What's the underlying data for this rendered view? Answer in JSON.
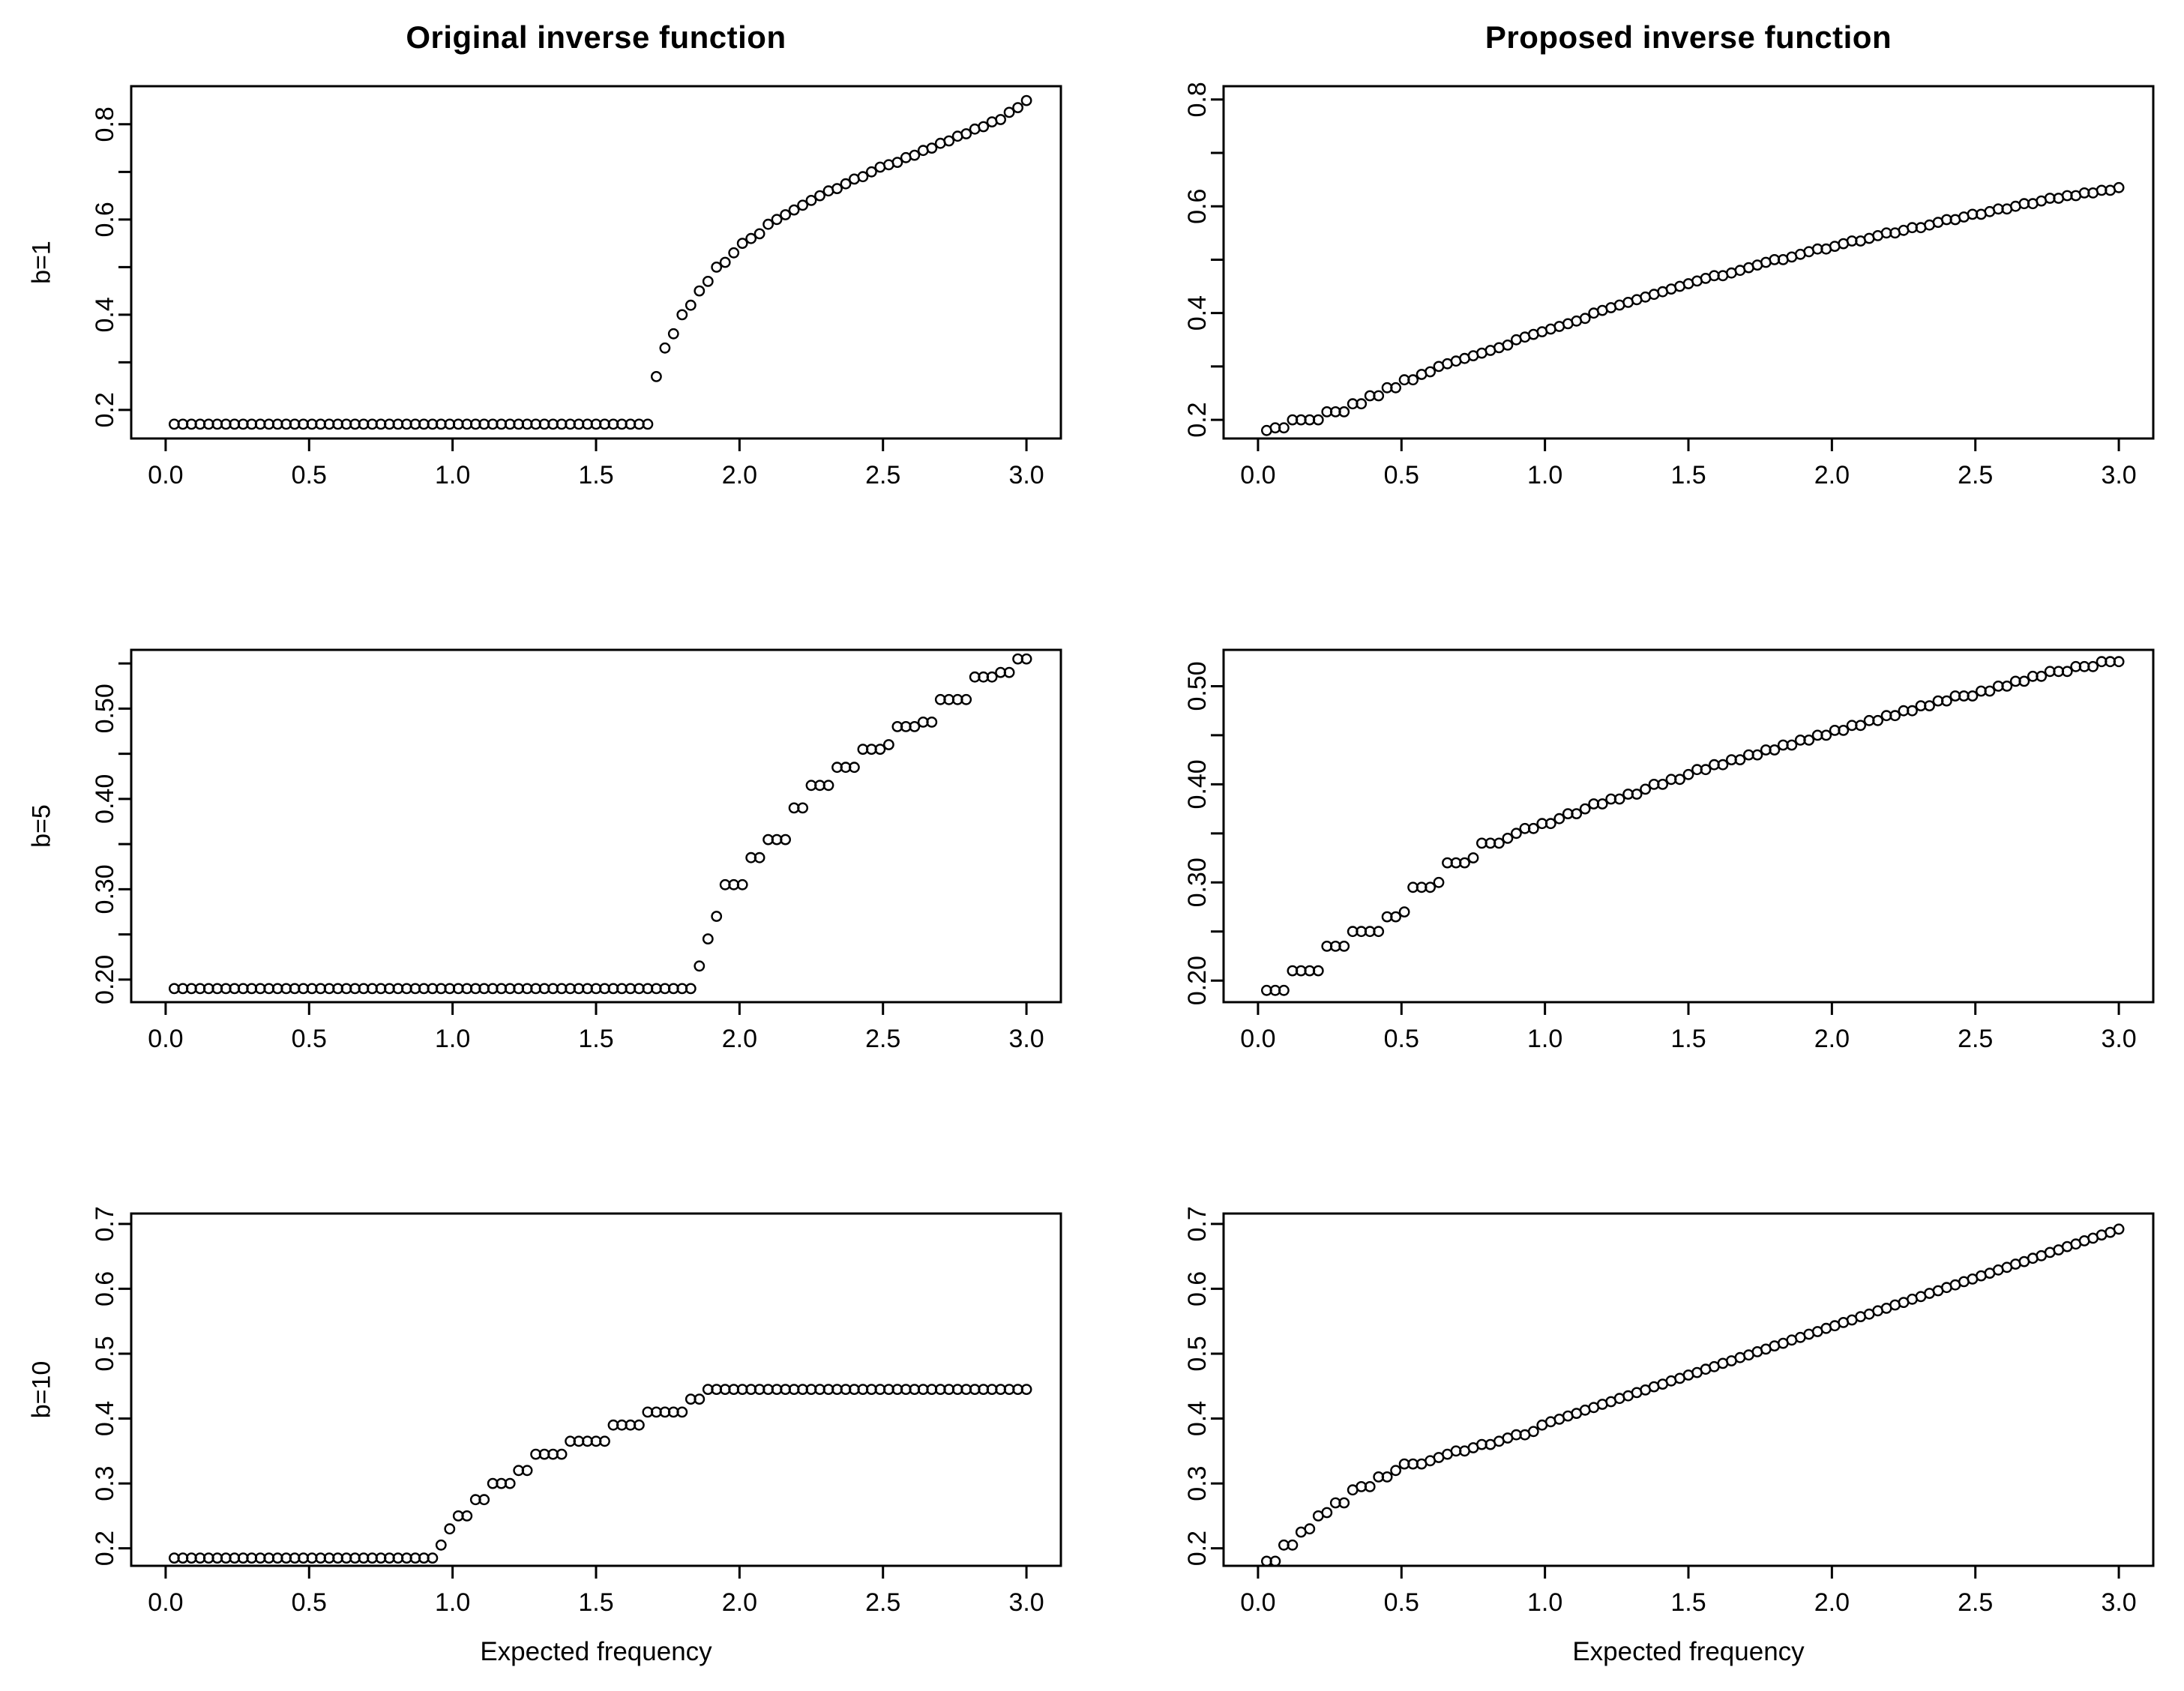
{
  "page": {
    "background": "#ffffff",
    "ink": "#000000",
    "columns": [
      "Original inverse function",
      "Proposed inverse function"
    ],
    "rows": [
      "b=1",
      "b=5",
      "b=10"
    ],
    "x_axis_label": "Expected frequency"
  },
  "chart_data": [
    {
      "name": "original-b1",
      "type": "scatter",
      "marker": "open-circle",
      "title": "Original inverse function",
      "row_label": "b=1",
      "xlim": [
        -0.12,
        3.12
      ],
      "ylim": [
        0.14,
        0.88
      ],
      "xticks": {
        "values": [
          0,
          0.5,
          1,
          1.5,
          2,
          2.5,
          3
        ],
        "labels": [
          "0.0",
          "0.5",
          "1.0",
          "1.5",
          "2.0",
          "2.5",
          "3.0"
        ]
      },
      "yticks": {
        "values": [
          0.2,
          0.3,
          0.4,
          0.5,
          0.6,
          0.7,
          0.8
        ],
        "labels": [
          "0.2",
          "",
          "0.4",
          "",
          "0.6",
          "",
          "0.8"
        ]
      },
      "x0": 0.03,
      "dx": 0.03,
      "y": [
        0.17,
        0.17,
        0.17,
        0.17,
        0.17,
        0.17,
        0.17,
        0.17,
        0.17,
        0.17,
        0.17,
        0.17,
        0.17,
        0.17,
        0.17,
        0.17,
        0.17,
        0.17,
        0.17,
        0.17,
        0.17,
        0.17,
        0.17,
        0.17,
        0.17,
        0.17,
        0.17,
        0.17,
        0.17,
        0.17,
        0.17,
        0.17,
        0.17,
        0.17,
        0.17,
        0.17,
        0.17,
        0.17,
        0.17,
        0.17,
        0.17,
        0.17,
        0.17,
        0.17,
        0.17,
        0.17,
        0.17,
        0.17,
        0.17,
        0.17,
        0.17,
        0.17,
        0.17,
        0.17,
        0.17,
        0.17,
        0.27,
        0.33,
        0.36,
        0.4,
        0.42,
        0.45,
        0.47,
        0.5,
        0.51,
        0.53,
        0.55,
        0.56,
        0.57,
        0.59,
        0.6,
        0.61,
        0.62,
        0.63,
        0.64,
        0.65,
        0.66,
        0.665,
        0.675,
        0.685,
        0.69,
        0.7,
        0.71,
        0.715,
        0.72,
        0.73,
        0.735,
        0.745,
        0.75,
        0.76,
        0.765,
        0.775,
        0.78,
        0.79,
        0.795,
        0.805,
        0.81,
        0.825,
        0.835,
        0.85
      ]
    },
    {
      "name": "proposed-b1",
      "type": "scatter",
      "marker": "open-circle",
      "title": "Proposed inverse function",
      "xlim": [
        -0.12,
        3.12
      ],
      "ylim": [
        0.165,
        0.825
      ],
      "xticks": {
        "values": [
          0,
          0.5,
          1,
          1.5,
          2,
          2.5,
          3
        ],
        "labels": [
          "0.0",
          "0.5",
          "1.0",
          "1.5",
          "2.0",
          "2.5",
          "3.0"
        ]
      },
      "yticks": {
        "values": [
          0.2,
          0.3,
          0.4,
          0.5,
          0.6,
          0.7,
          0.8
        ],
        "labels": [
          "0.2",
          "",
          "0.4",
          "",
          "0.6",
          "",
          "0.8"
        ]
      },
      "x0": 0.03,
      "dx": 0.03,
      "y": [
        0.18,
        0.185,
        0.185,
        0.2,
        0.2,
        0.2,
        0.2,
        0.215,
        0.215,
        0.215,
        0.23,
        0.23,
        0.245,
        0.245,
        0.26,
        0.26,
        0.275,
        0.275,
        0.285,
        0.29,
        0.3,
        0.305,
        0.31,
        0.315,
        0.32,
        0.325,
        0.33,
        0.335,
        0.34,
        0.35,
        0.355,
        0.36,
        0.365,
        0.37,
        0.375,
        0.38,
        0.385,
        0.39,
        0.4,
        0.405,
        0.41,
        0.415,
        0.42,
        0.425,
        0.43,
        0.435,
        0.44,
        0.445,
        0.45,
        0.455,
        0.46,
        0.465,
        0.47,
        0.47,
        0.475,
        0.48,
        0.485,
        0.49,
        0.495,
        0.5,
        0.5,
        0.505,
        0.51,
        0.515,
        0.52,
        0.52,
        0.525,
        0.53,
        0.535,
        0.535,
        0.54,
        0.545,
        0.55,
        0.55,
        0.555,
        0.56,
        0.56,
        0.565,
        0.57,
        0.575,
        0.575,
        0.58,
        0.585,
        0.585,
        0.59,
        0.595,
        0.595,
        0.6,
        0.605,
        0.605,
        0.61,
        0.615,
        0.615,
        0.62,
        0.62,
        0.625,
        0.625,
        0.63,
        0.63,
        0.635
      ]
    },
    {
      "name": "original-b5",
      "type": "scatter",
      "marker": "open-circle",
      "row_label": "b=5",
      "xlim": [
        -0.12,
        3.12
      ],
      "ylim": [
        0.175,
        0.565
      ],
      "xticks": {
        "values": [
          0,
          0.5,
          1,
          1.5,
          2,
          2.5,
          3
        ],
        "labels": [
          "0.0",
          "0.5",
          "1.0",
          "1.5",
          "2.0",
          "2.5",
          "3.0"
        ]
      },
      "yticks": {
        "values": [
          0.2,
          0.25,
          0.3,
          0.35,
          0.4,
          0.45,
          0.5,
          0.55
        ],
        "labels": [
          "0.20",
          "",
          "0.30",
          "",
          "0.40",
          "",
          "0.50",
          ""
        ]
      },
      "x0": 0.03,
      "dx": 0.03,
      "y": [
        0.19,
        0.19,
        0.19,
        0.19,
        0.19,
        0.19,
        0.19,
        0.19,
        0.19,
        0.19,
        0.19,
        0.19,
        0.19,
        0.19,
        0.19,
        0.19,
        0.19,
        0.19,
        0.19,
        0.19,
        0.19,
        0.19,
        0.19,
        0.19,
        0.19,
        0.19,
        0.19,
        0.19,
        0.19,
        0.19,
        0.19,
        0.19,
        0.19,
        0.19,
        0.19,
        0.19,
        0.19,
        0.19,
        0.19,
        0.19,
        0.19,
        0.19,
        0.19,
        0.19,
        0.19,
        0.19,
        0.19,
        0.19,
        0.19,
        0.19,
        0.19,
        0.19,
        0.19,
        0.19,
        0.19,
        0.19,
        0.19,
        0.19,
        0.19,
        0.19,
        0.19,
        0.215,
        0.245,
        0.27,
        0.305,
        0.305,
        0.305,
        0.335,
        0.335,
        0.355,
        0.355,
        0.355,
        0.39,
        0.39,
        0.415,
        0.415,
        0.415,
        0.435,
        0.435,
        0.435,
        0.455,
        0.455,
        0.455,
        0.46,
        0.48,
        0.48,
        0.48,
        0.485,
        0.485,
        0.51,
        0.51,
        0.51,
        0.51,
        0.535,
        0.535,
        0.535,
        0.54,
        0.54,
        0.555,
        0.555
      ]
    },
    {
      "name": "proposed-b5",
      "type": "scatter",
      "marker": "open-circle",
      "xlim": [
        -0.12,
        3.12
      ],
      "ylim": [
        0.178,
        0.537
      ],
      "xticks": {
        "values": [
          0,
          0.5,
          1,
          1.5,
          2,
          2.5,
          3
        ],
        "labels": [
          "0.0",
          "0.5",
          "1.0",
          "1.5",
          "2.0",
          "2.5",
          "3.0"
        ]
      },
      "yticks": {
        "values": [
          0.2,
          0.25,
          0.3,
          0.35,
          0.4,
          0.45,
          0.5
        ],
        "labels": [
          "0.20",
          "",
          "0.30",
          "",
          "0.40",
          "",
          "0.50"
        ]
      },
      "x0": 0.03,
      "dx": 0.03,
      "y": [
        0.19,
        0.19,
        0.19,
        0.21,
        0.21,
        0.21,
        0.21,
        0.235,
        0.235,
        0.235,
        0.25,
        0.25,
        0.25,
        0.25,
        0.265,
        0.265,
        0.27,
        0.295,
        0.295,
        0.295,
        0.3,
        0.32,
        0.32,
        0.32,
        0.325,
        0.34,
        0.34,
        0.34,
        0.345,
        0.35,
        0.355,
        0.355,
        0.36,
        0.36,
        0.365,
        0.37,
        0.37,
        0.375,
        0.38,
        0.38,
        0.385,
        0.385,
        0.39,
        0.39,
        0.395,
        0.4,
        0.4,
        0.405,
        0.405,
        0.41,
        0.415,
        0.415,
        0.42,
        0.42,
        0.425,
        0.425,
        0.43,
        0.43,
        0.435,
        0.435,
        0.44,
        0.44,
        0.445,
        0.445,
        0.45,
        0.45,
        0.455,
        0.455,
        0.46,
        0.46,
        0.465,
        0.465,
        0.47,
        0.47,
        0.475,
        0.475,
        0.48,
        0.48,
        0.485,
        0.485,
        0.49,
        0.49,
        0.49,
        0.495,
        0.495,
        0.5,
        0.5,
        0.505,
        0.505,
        0.51,
        0.51,
        0.515,
        0.515,
        0.515,
        0.52,
        0.52,
        0.52,
        0.525,
        0.525,
        0.525
      ]
    },
    {
      "name": "original-b10",
      "type": "scatter",
      "marker": "open-circle",
      "row_label": "b=10",
      "xlabel": "Expected frequency",
      "xlim": [
        -0.12,
        3.12
      ],
      "ylim": [
        0.173,
        0.716
      ],
      "xticks": {
        "values": [
          0,
          0.5,
          1,
          1.5,
          2,
          2.5,
          3
        ],
        "labels": [
          "0.0",
          "0.5",
          "1.0",
          "1.5",
          "2.0",
          "2.5",
          "3.0"
        ]
      },
      "yticks": {
        "values": [
          0.2,
          0.3,
          0.4,
          0.5,
          0.6,
          0.7
        ],
        "labels": [
          "0.2",
          "0.3",
          "0.4",
          "0.5",
          "0.6",
          "0.7"
        ]
      },
      "x0": 0.03,
      "dx": 0.03,
      "y": [
        0.185,
        0.185,
        0.185,
        0.185,
        0.185,
        0.185,
        0.185,
        0.185,
        0.185,
        0.185,
        0.185,
        0.185,
        0.185,
        0.185,
        0.185,
        0.185,
        0.185,
        0.185,
        0.185,
        0.185,
        0.185,
        0.185,
        0.185,
        0.185,
        0.185,
        0.185,
        0.185,
        0.185,
        0.185,
        0.185,
        0.185,
        0.205,
        0.23,
        0.25,
        0.25,
        0.275,
        0.275,
        0.3,
        0.3,
        0.3,
        0.32,
        0.32,
        0.345,
        0.345,
        0.345,
        0.345,
        0.365,
        0.365,
        0.365,
        0.365,
        0.365,
        0.39,
        0.39,
        0.39,
        0.39,
        0.41,
        0.41,
        0.41,
        0.41,
        0.41,
        0.43,
        0.43,
        0.445,
        0.445,
        0.445,
        0.445,
        0.445,
        0.445,
        0.445,
        0.445,
        0.445,
        0.445,
        0.445,
        0.445,
        0.445,
        0.445,
        0.445,
        0.445,
        0.445,
        0.445,
        0.445,
        0.445,
        0.445,
        0.445,
        0.445,
        0.445,
        0.445,
        0.445,
        0.445,
        0.445,
        0.445,
        0.445,
        0.445,
        0.445,
        0.445,
        0.445,
        0.445,
        0.445,
        0.445,
        0.445
      ]
    },
    {
      "name": "proposed-b10",
      "type": "scatter",
      "marker": "open-circle",
      "xlabel": "Expected frequency",
      "xlim": [
        -0.12,
        3.12
      ],
      "ylim": [
        0.173,
        0.716
      ],
      "xticks": {
        "values": [
          0,
          0.5,
          1,
          1.5,
          2,
          2.5,
          3
        ],
        "labels": [
          "0.0",
          "0.5",
          "1.0",
          "1.5",
          "2.0",
          "2.5",
          "3.0"
        ]
      },
      "yticks": {
        "values": [
          0.2,
          0.3,
          0.4,
          0.5,
          0.6,
          0.7
        ],
        "labels": [
          "0.2",
          "0.3",
          "0.4",
          "0.5",
          "0.6",
          "0.7"
        ]
      },
      "x0": 0.03,
      "dx": 0.03,
      "y": [
        0.18,
        0.18,
        0.205,
        0.205,
        0.225,
        0.23,
        0.25,
        0.255,
        0.27,
        0.27,
        0.29,
        0.295,
        0.295,
        0.31,
        0.31,
        0.32,
        0.33,
        0.33,
        0.33,
        0.335,
        0.34,
        0.345,
        0.35,
        0.35,
        0.355,
        0.36,
        0.36,
        0.365,
        0.37,
        0.375,
        0.375,
        0.38,
        0.39,
        0.395,
        0.399,
        0.404,
        0.408,
        0.413,
        0.417,
        0.422,
        0.426,
        0.431,
        0.435,
        0.44,
        0.444,
        0.449,
        0.453,
        0.458,
        0.462,
        0.467,
        0.471,
        0.476,
        0.48,
        0.485,
        0.489,
        0.494,
        0.498,
        0.503,
        0.507,
        0.512,
        0.516,
        0.521,
        0.525,
        0.53,
        0.534,
        0.539,
        0.543,
        0.548,
        0.552,
        0.557,
        0.561,
        0.566,
        0.57,
        0.575,
        0.579,
        0.584,
        0.588,
        0.593,
        0.597,
        0.602,
        0.606,
        0.611,
        0.615,
        0.62,
        0.624,
        0.629,
        0.633,
        0.638,
        0.642,
        0.647,
        0.651,
        0.656,
        0.66,
        0.665,
        0.669,
        0.674,
        0.678,
        0.683,
        0.687,
        0.692
      ]
    }
  ]
}
